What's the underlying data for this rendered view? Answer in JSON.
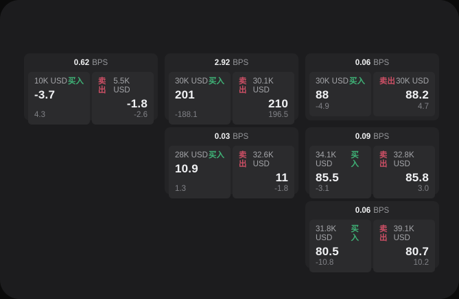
{
  "labels": {
    "bps": "BPS",
    "buy": "买入",
    "sell": "卖出"
  },
  "colors": {
    "buy": "#3fb377",
    "sell": "#cc4f65",
    "window_bg": "#1c1c1e",
    "card_bg": "#242426",
    "panel_bg": "#2b2b2d"
  },
  "cards": [
    {
      "bps": "0.62",
      "buy": {
        "amount": "10K USD",
        "main": "-3.7",
        "sub": "4.3"
      },
      "sell": {
        "amount": "5.5K USD",
        "main": "-1.8",
        "sub": "-2.6"
      }
    },
    {
      "bps": "2.92",
      "buy": {
        "amount": "30K USD",
        "main": "201",
        "sub": "-188.1"
      },
      "sell": {
        "amount": "30.1K USD",
        "main": "210",
        "sub": "196.5"
      }
    },
    {
      "bps": "0.06",
      "buy": {
        "amount": "30K USD",
        "main": "88",
        "sub": "-4.9"
      },
      "sell": {
        "amount": "30K USD",
        "main": "88.2",
        "sub": "4.7"
      }
    },
    {
      "bps": "0.03",
      "buy": {
        "amount": "28K USD",
        "main": "10.9",
        "sub": "1.3"
      },
      "sell": {
        "amount": "32.6K USD",
        "main": "11",
        "sub": "-1.8"
      }
    },
    {
      "bps": "0.09",
      "buy": {
        "amount": "34.1K USD",
        "main": "85.5",
        "sub": "-3.1"
      },
      "sell": {
        "amount": "32.8K USD",
        "main": "85.8",
        "sub": "3.0"
      }
    },
    {
      "bps": "0.06",
      "buy": {
        "amount": "31.8K USD",
        "main": "80.5",
        "sub": "-10.8"
      },
      "sell": {
        "amount": "39.1K USD",
        "main": "80.7",
        "sub": "10.2"
      }
    }
  ]
}
